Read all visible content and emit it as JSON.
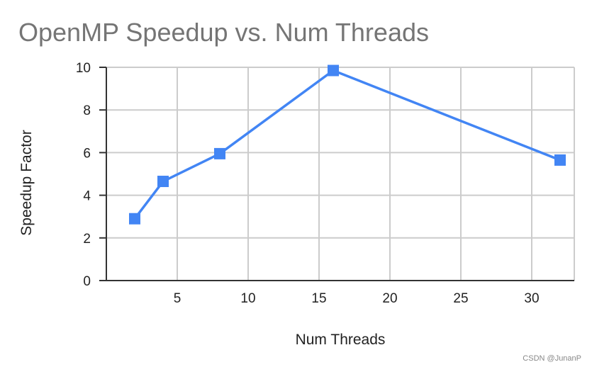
{
  "chart_data": {
    "type": "line",
    "title": "OpenMP Speedup vs. Num Threads",
    "xlabel": "Num Threads",
    "ylabel": "Speedup Factor",
    "x": [
      2,
      4,
      8,
      16,
      32
    ],
    "series": [
      {
        "values": [
          2.9,
          4.65,
          5.95,
          9.85,
          5.65
        ],
        "color": "#4285f4",
        "marker": "square"
      }
    ],
    "xlim": [
      0,
      33
    ],
    "ylim": [
      0,
      10
    ],
    "xticks": [
      5,
      10,
      15,
      20,
      25,
      30
    ],
    "yticks": [
      0,
      2,
      4,
      6,
      8,
      10
    ],
    "grid": true,
    "legend": "none"
  },
  "watermark": "CSDN @JunanP",
  "colors": {
    "series": "#4285f4",
    "grid": "#cccccc",
    "axis": "#333333",
    "title": "#757575"
  }
}
